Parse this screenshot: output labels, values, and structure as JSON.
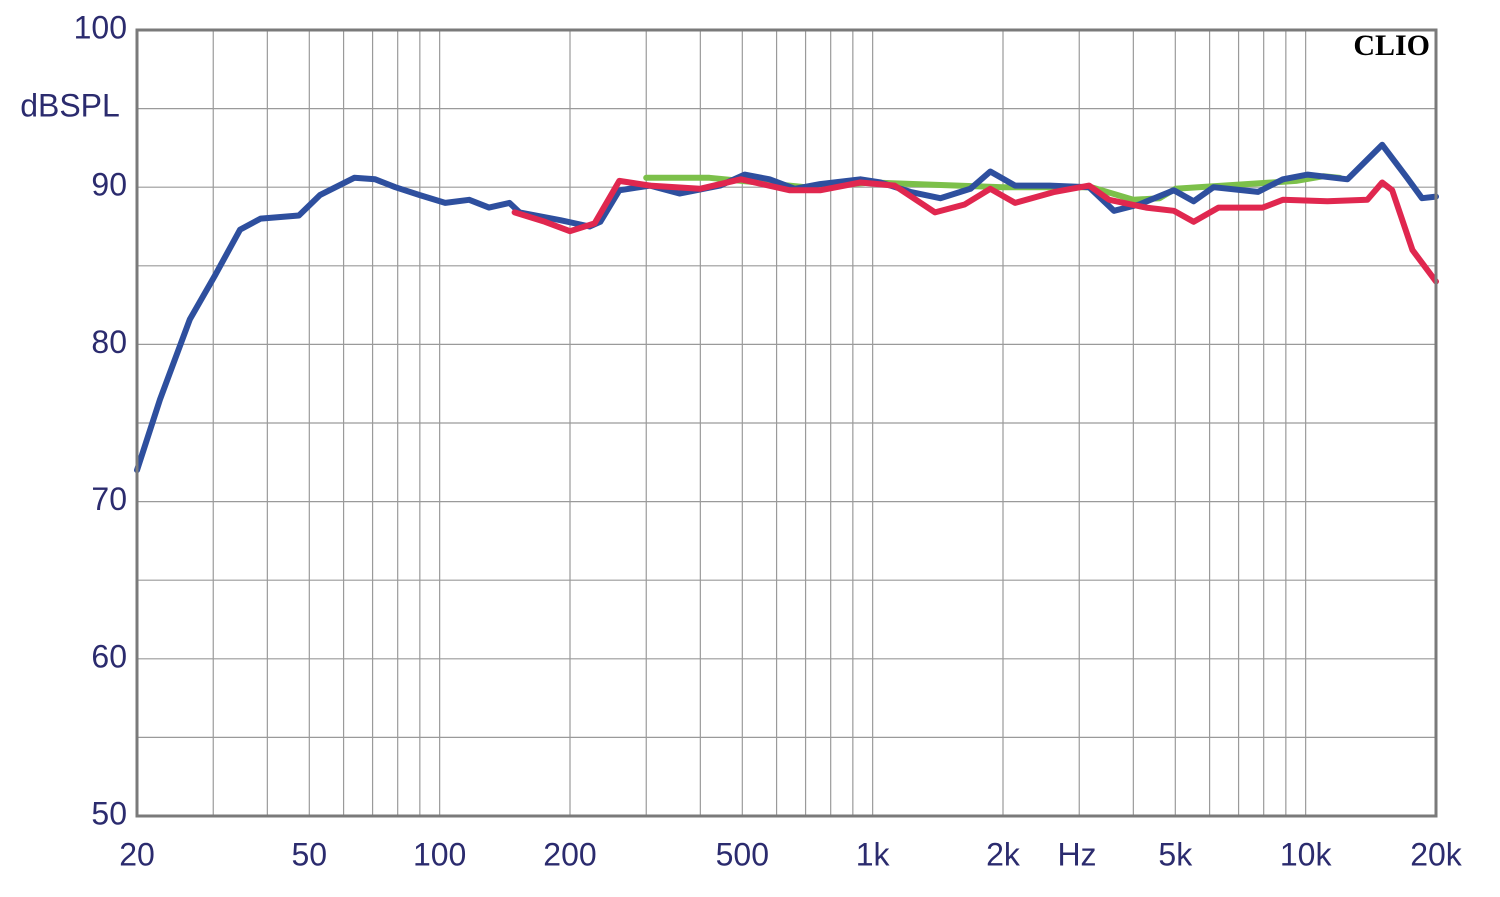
{
  "chart_data": {
    "type": "line",
    "brand": "CLIO",
    "y_label": "dBSPL",
    "x_label": "Hz",
    "x_scale": "log",
    "grid": true,
    "xlim": [
      20,
      20000
    ],
    "ylim": [
      50,
      100
    ],
    "xticks": [
      20,
      50,
      100,
      200,
      500,
      {
        "value": 1000,
        "label": "1k"
      },
      {
        "value": 2000,
        "label": "2k"
      },
      {
        "value": 5000,
        "label": "5k"
      },
      {
        "value": 10000,
        "label": "10k"
      },
      {
        "value": 20000,
        "label": "20k"
      }
    ],
    "xminor_ticks": [
      30,
      40,
      60,
      70,
      80,
      90,
      300,
      400,
      600,
      700,
      800,
      900,
      3000,
      4000,
      6000,
      7000,
      8000,
      9000
    ],
    "yticks": [
      50,
      60,
      70,
      80,
      90,
      100
    ],
    "yminor_ticks": [
      55,
      65,
      75,
      85,
      95
    ],
    "series": [
      {
        "name": "green",
        "color": "#7cc04a",
        "x": [
          300,
          420,
          700,
          1000,
          2000,
          3200,
          4000,
          4600,
          5000,
          9500,
          11000,
          12000
        ],
        "values": [
          90.6,
          90.6,
          90.0,
          90.3,
          90.0,
          90.0,
          89.2,
          89.3,
          89.9,
          90.4,
          90.7,
          90.6
        ]
      },
      {
        "name": "blue",
        "color": "#2e4f9e",
        "x": [
          20,
          22.6,
          26.5,
          30.3,
          34.6,
          38.6,
          47.3,
          52.9,
          63.5,
          71,
          79,
          90,
          103,
          117,
          130,
          145,
          153,
          190,
          222,
          235,
          260,
          306,
          358,
          444,
          506,
          578,
          661,
          756,
          937,
          1043,
          1222,
          1433,
          1682,
          1869,
          2133,
          2565,
          3162,
          3609,
          4125,
          4961,
          5511,
          6126,
          7757,
          8860,
          10111,
          12490,
          15023,
          17150,
          18570,
          20000
        ],
        "values": [
          72.0,
          76.5,
          81.6,
          84.4,
          87.3,
          88.0,
          88.2,
          89.5,
          90.6,
          90.5,
          90.0,
          89.5,
          89.0,
          89.2,
          88.7,
          89.0,
          88.4,
          87.9,
          87.5,
          87.8,
          89.8,
          90.1,
          89.6,
          90.1,
          90.8,
          90.5,
          89.9,
          90.2,
          90.5,
          90.3,
          89.7,
          89.3,
          89.9,
          91.0,
          90.1,
          90.1,
          90.0,
          88.5,
          88.9,
          89.8,
          89.1,
          90.0,
          89.7,
          90.5,
          90.8,
          90.5,
          92.7,
          90.6,
          89.3,
          89.4
        ]
      },
      {
        "name": "red",
        "color": "#e0274f",
        "x": [
          149,
          175,
          200,
          228,
          260,
          306,
          399,
          496,
          644,
          756,
          937,
          1124,
          1393,
          1631,
          1869,
          2133,
          2631,
          3162,
          3518,
          4280,
          4961,
          5511,
          6292,
          7963,
          8860,
          11226,
          13880,
          15023,
          15845,
          17650,
          20000
        ],
        "values": [
          88.4,
          87.8,
          87.2,
          87.7,
          90.4,
          90.1,
          89.9,
          90.5,
          89.8,
          89.8,
          90.3,
          90.1,
          88.4,
          88.9,
          89.9,
          89.0,
          89.7,
          90.1,
          89.2,
          88.7,
          88.5,
          87.8,
          88.7,
          88.7,
          89.2,
          89.1,
          89.2,
          90.3,
          89.8,
          86.0,
          84.0
        ]
      }
    ]
  }
}
